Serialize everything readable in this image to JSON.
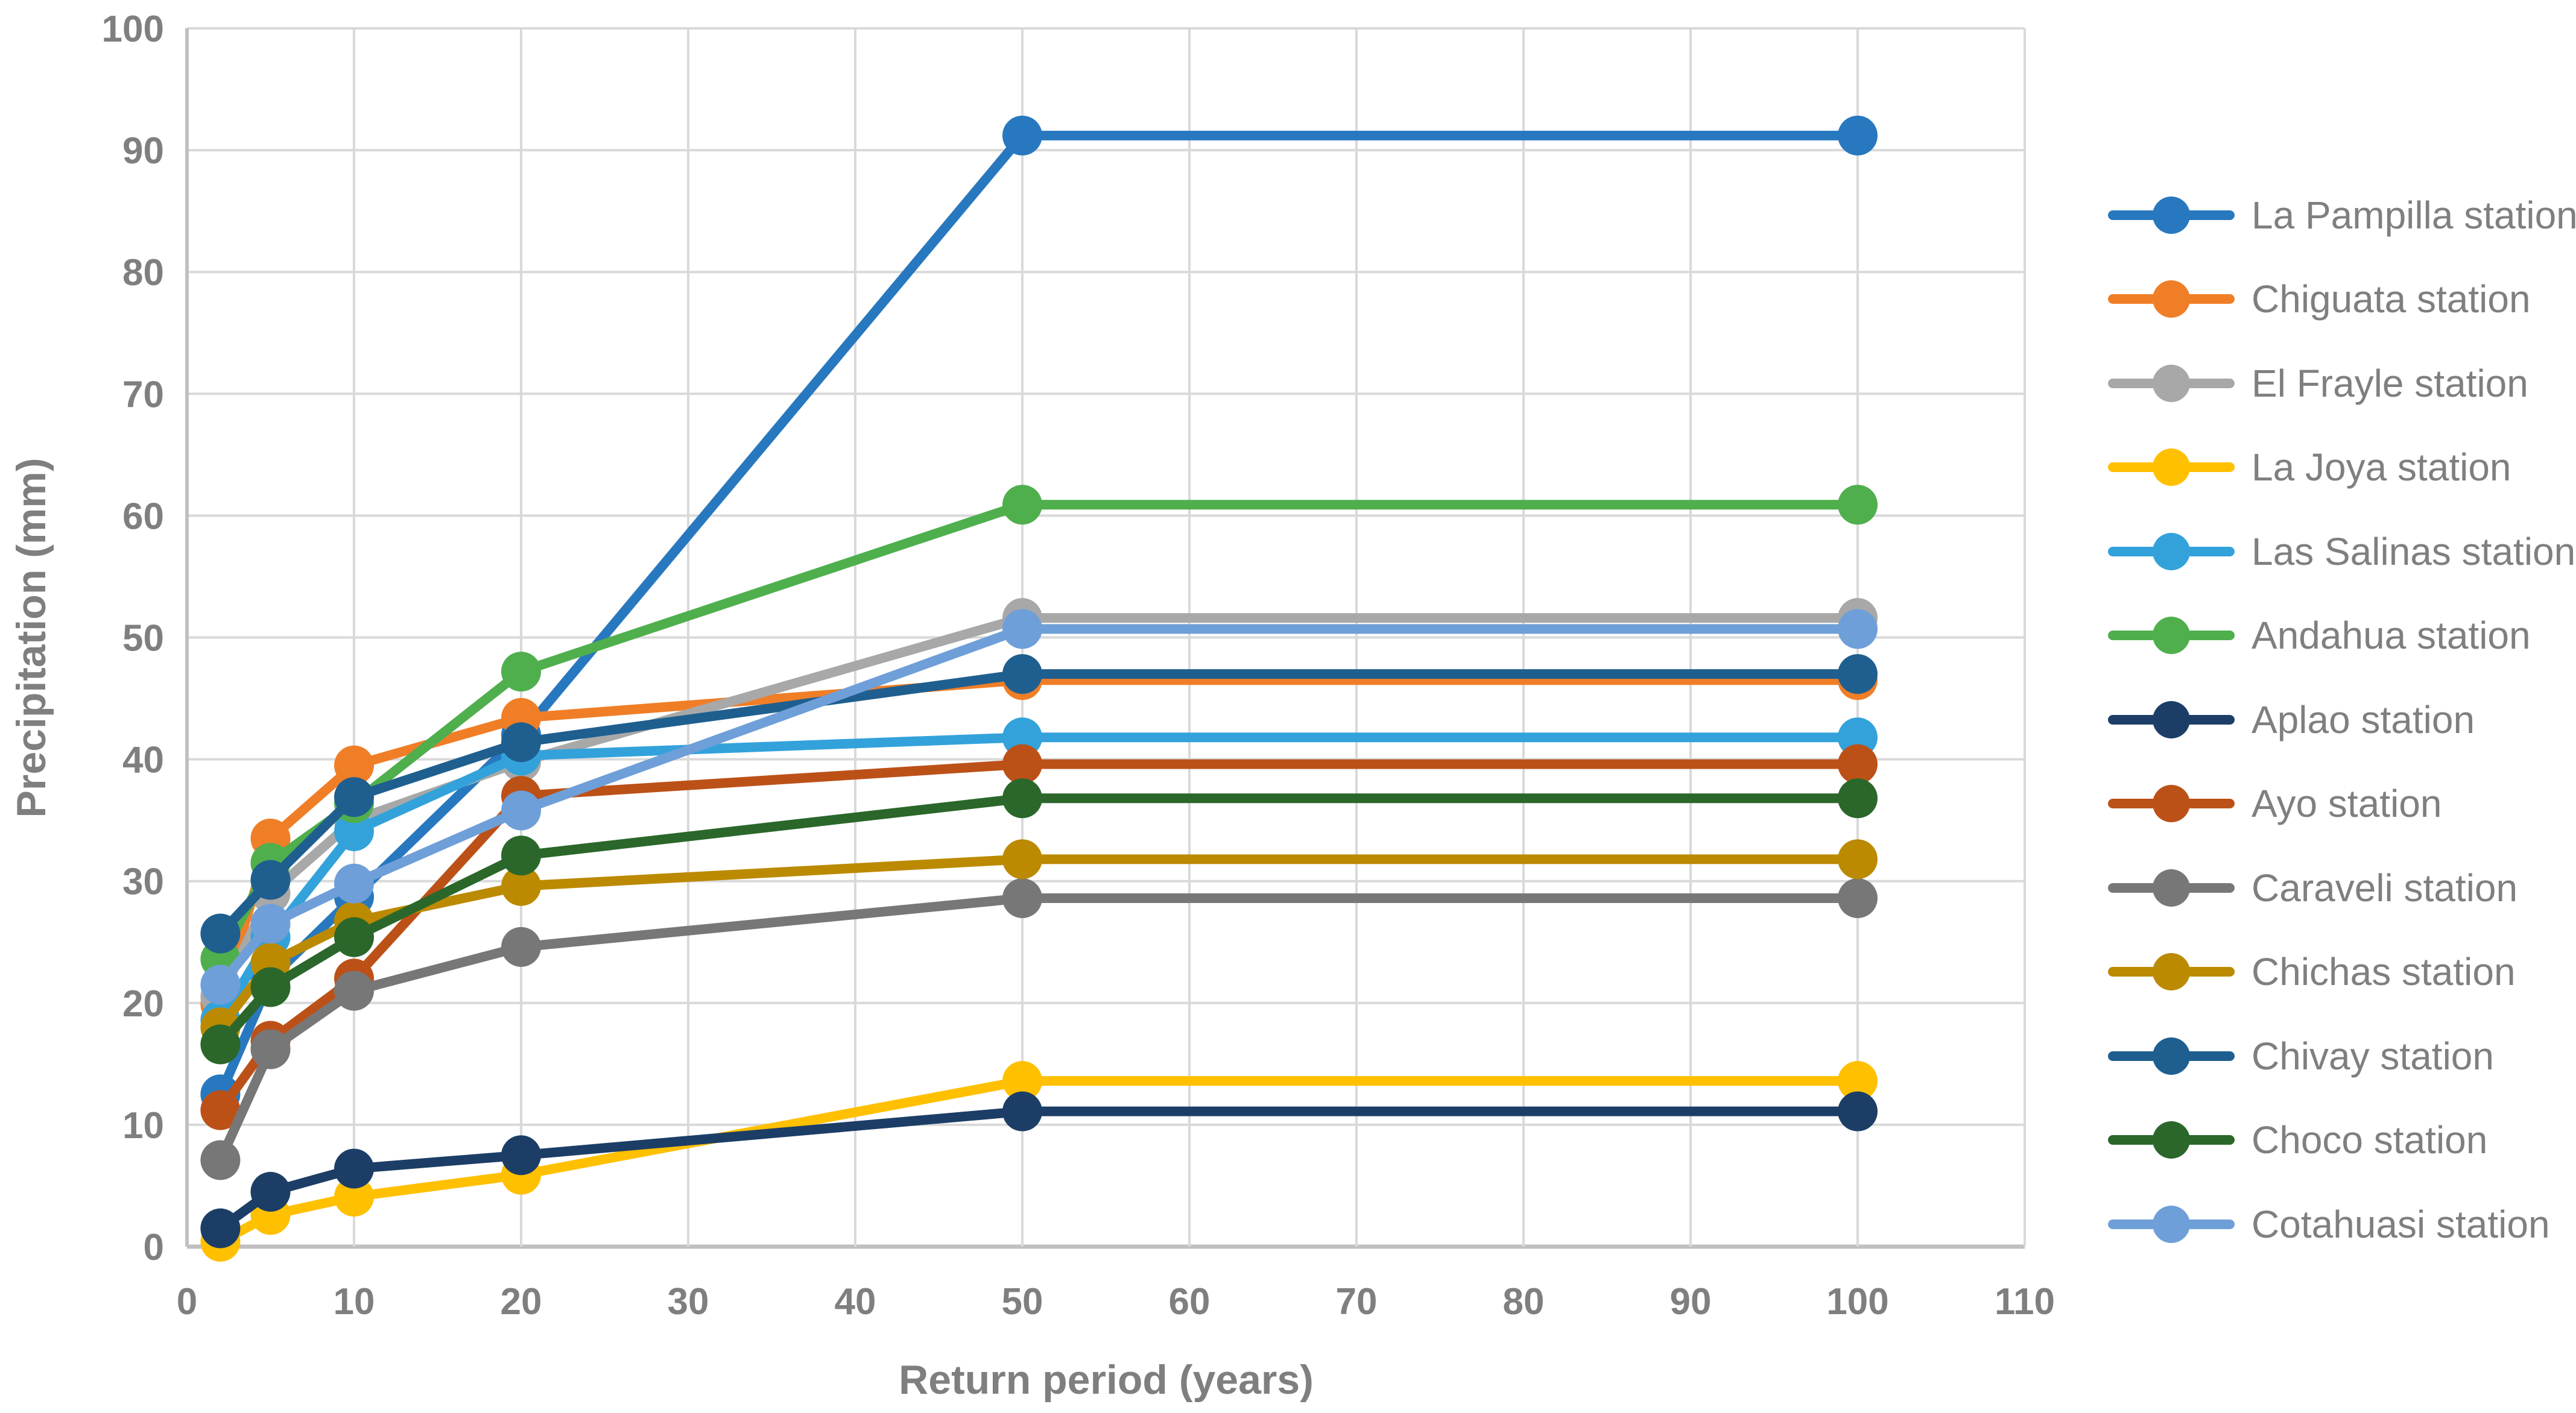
{
  "chart_data": {
    "type": "line",
    "title": "",
    "xlabel": "Return period (years)",
    "ylabel": "Precipitation (mm)",
    "x": [
      2,
      5,
      10,
      20,
      50,
      100
    ],
    "xlim": [
      0,
      110
    ],
    "ylim": [
      0,
      100
    ],
    "xticks": [
      0,
      10,
      20,
      30,
      40,
      50,
      60,
      70,
      80,
      90,
      100,
      110
    ],
    "yticks": [
      0,
      10,
      20,
      30,
      40,
      50,
      60,
      70,
      80,
      90,
      100
    ],
    "grid": true,
    "legend_position": "right",
    "marker": "circle",
    "series": [
      {
        "name": "La Pampilla station",
        "color": "#2878BF",
        "values": [
          12.5,
          22.0,
          28.7,
          42.0,
          91.2,
          91.2
        ]
      },
      {
        "name": "Chiguata station",
        "color": "#F07E27",
        "values": [
          19.9,
          33.5,
          39.5,
          43.4,
          46.5,
          46.5
        ]
      },
      {
        "name": "El Frayle station",
        "color": "#A8A8A8",
        "values": [
          20.5,
          29.0,
          35.0,
          39.8,
          51.6,
          51.6
        ]
      },
      {
        "name": "La Joya station",
        "color": "#FFC000",
        "values": [
          0.4,
          2.6,
          4.1,
          5.9,
          13.6,
          13.6
        ]
      },
      {
        "name": "Las Salinas station",
        "color": "#33A2DB",
        "values": [
          18.6,
          25.4,
          34.1,
          40.3,
          41.8,
          41.8
        ]
      },
      {
        "name": "Andahua station",
        "color": "#4FAF4D",
        "values": [
          23.6,
          31.5,
          36.4,
          47.2,
          60.9,
          60.9
        ]
      },
      {
        "name": "Aplao station",
        "color": "#1C3E66",
        "values": [
          1.5,
          4.5,
          6.4,
          7.5,
          11.1,
          11.1
        ]
      },
      {
        "name": "Ayo station",
        "color": "#BC5118",
        "values": [
          11.2,
          16.9,
          22.0,
          37.0,
          39.6,
          39.6
        ]
      },
      {
        "name": "Caraveli station",
        "color": "#777777",
        "values": [
          7.1,
          16.2,
          21.0,
          24.6,
          28.6,
          28.6
        ]
      },
      {
        "name": "Chichas station",
        "color": "#BB8A00",
        "values": [
          18.0,
          23.3,
          26.7,
          29.6,
          31.8,
          31.8
        ]
      },
      {
        "name": "Chivay station",
        "color": "#1F5F8F",
        "values": [
          25.7,
          30.1,
          36.9,
          41.4,
          47.0,
          47.0
        ]
      },
      {
        "name": "Choco station",
        "color": "#2B672B",
        "values": [
          16.6,
          21.3,
          25.4,
          32.1,
          36.8,
          36.8
        ]
      },
      {
        "name": "Cotahuasi station",
        "color": "#6F9FD8",
        "values": [
          21.5,
          26.5,
          29.8,
          35.8,
          50.7,
          50.7
        ]
      }
    ],
    "style": {
      "grid_color": "#D9D9D9",
      "axis_line_color": "#C0C0C0",
      "text_color": "#7f7f7f",
      "line_width": 16,
      "marker_radius": 33
    }
  }
}
